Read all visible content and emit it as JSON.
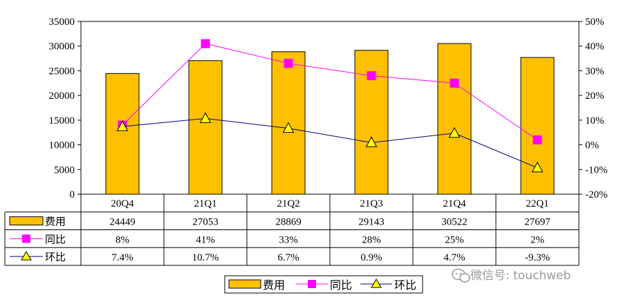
{
  "chart_data": {
    "type": "bar",
    "categories": [
      "20Q4",
      "21Q1",
      "21Q2",
      "21Q3",
      "21Q4",
      "22Q1"
    ],
    "series": [
      {
        "name": "费用",
        "type": "bar",
        "axis": "left",
        "values": [
          24449,
          27053,
          28869,
          29143,
          30522,
          27697
        ],
        "color": "#FFC000"
      },
      {
        "name": "同比",
        "type": "line",
        "axis": "right",
        "values": [
          8,
          41,
          33,
          28,
          25,
          2
        ],
        "color": "#FF00FF",
        "marker": "square"
      },
      {
        "name": "环比",
        "type": "line",
        "axis": "right",
        "values": [
          7.4,
          10.7,
          6.7,
          0.9,
          4.7,
          -9.3
        ],
        "color": "#000080",
        "marker": "triangle",
        "marker_color": "#FFFF00"
      }
    ],
    "left_axis": {
      "ylim": [
        0,
        35000
      ],
      "ticks": [
        "0",
        "5000",
        "10000",
        "15000",
        "20000",
        "25000",
        "30000",
        "35000"
      ]
    },
    "right_axis": {
      "ylim": [
        -20,
        50
      ],
      "ticks": [
        "-20%",
        "-10%",
        "0%",
        "10%",
        "20%",
        "30%",
        "40%",
        "50%"
      ]
    },
    "table": {
      "rows": [
        {
          "label": "费用",
          "cells": [
            "24449",
            "27053",
            "28869",
            "29143",
            "30522",
            "27697"
          ]
        },
        {
          "label": "同比",
          "cells": [
            "8%",
            "41%",
            "33%",
            "28%",
            "25%",
            "2%"
          ]
        },
        {
          "label": "环比",
          "cells": [
            "7.4%",
            "10.7%",
            "6.7%",
            "0.9%",
            "4.7%",
            "-9.3%"
          ]
        }
      ]
    },
    "legend": {
      "placement": "bottom",
      "items": [
        "费用",
        "同比",
        "环比"
      ]
    },
    "grid": false
  },
  "watermark": {
    "text": "微信号: touchweb",
    "icon": "wechat-icon"
  }
}
